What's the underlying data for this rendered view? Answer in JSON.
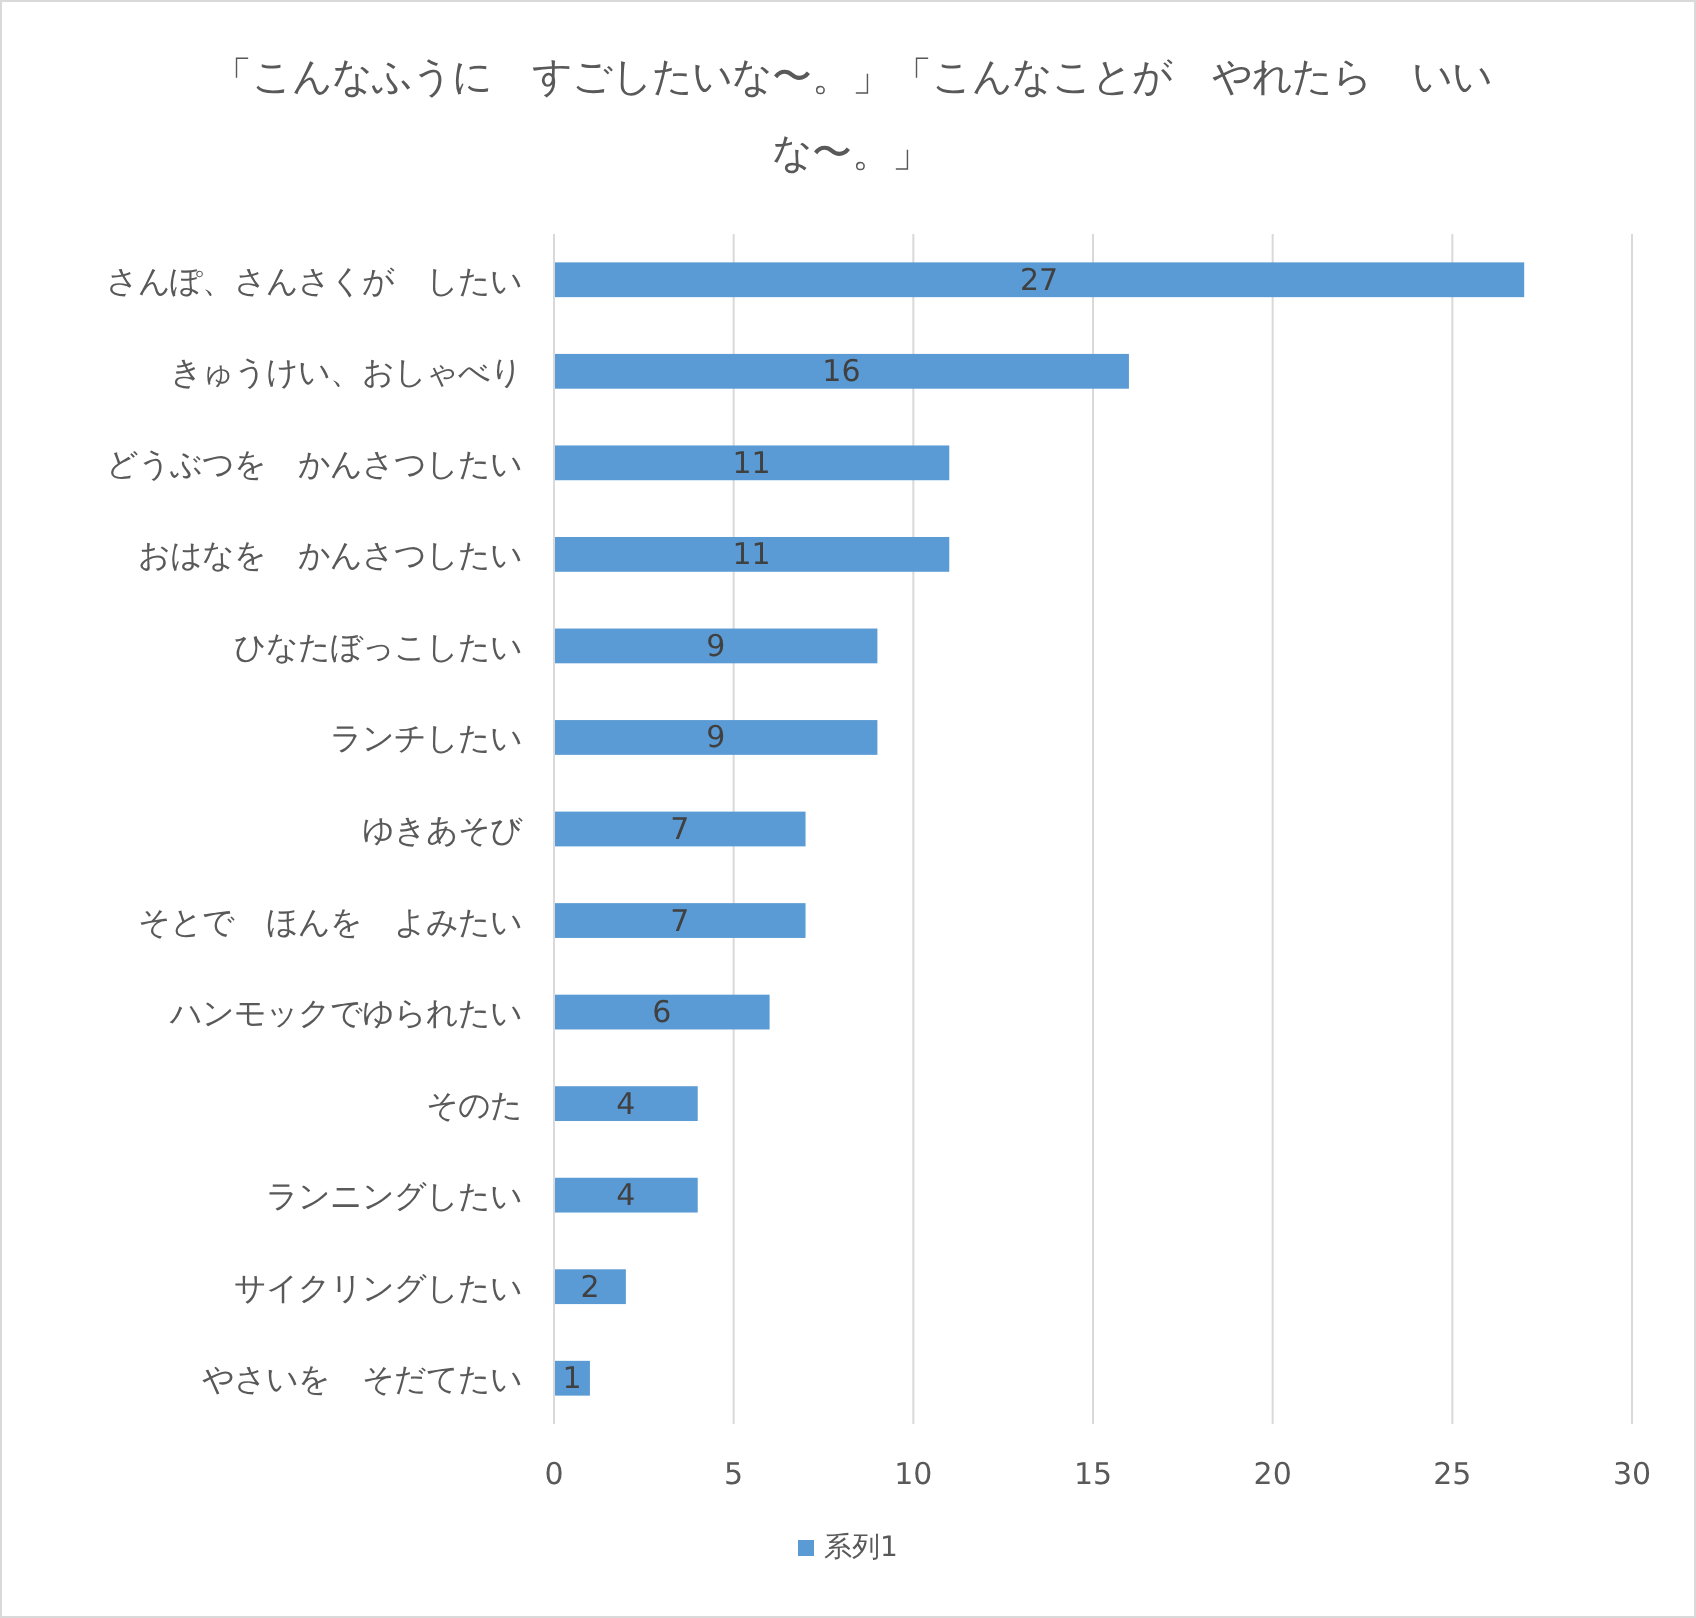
{
  "chart_data": {
    "type": "bar",
    "orientation": "horizontal",
    "title": "「こんなふうに　すごしたいな〜。」「こんなことが　やれたら　いいな〜。」",
    "categories": [
      "さんぽ、さんさくが　したい",
      "きゅうけい、おしゃべり",
      "どうぶつを　かんさつしたい",
      "おはなを　かんさつしたい",
      "ひなたぼっこしたい",
      "ランチしたい",
      "ゆきあそび",
      "そとで　ほんを　よみたい",
      "ハンモックでゆられたい",
      "そのた",
      "ランニングしたい",
      "サイクリングしたい",
      "やさいを　そだてたい"
    ],
    "series": [
      {
        "name": "系列1",
        "color": "#5b9bd5",
        "values": [
          27,
          16,
          11,
          11,
          9,
          9,
          7,
          7,
          6,
          4,
          4,
          2,
          1
        ]
      }
    ],
    "xlim": [
      0,
      30
    ],
    "xticks": [
      0,
      5,
      10,
      15,
      20,
      25,
      30
    ],
    "grid": "x",
    "legend": "bottom",
    "data_labels": true
  }
}
